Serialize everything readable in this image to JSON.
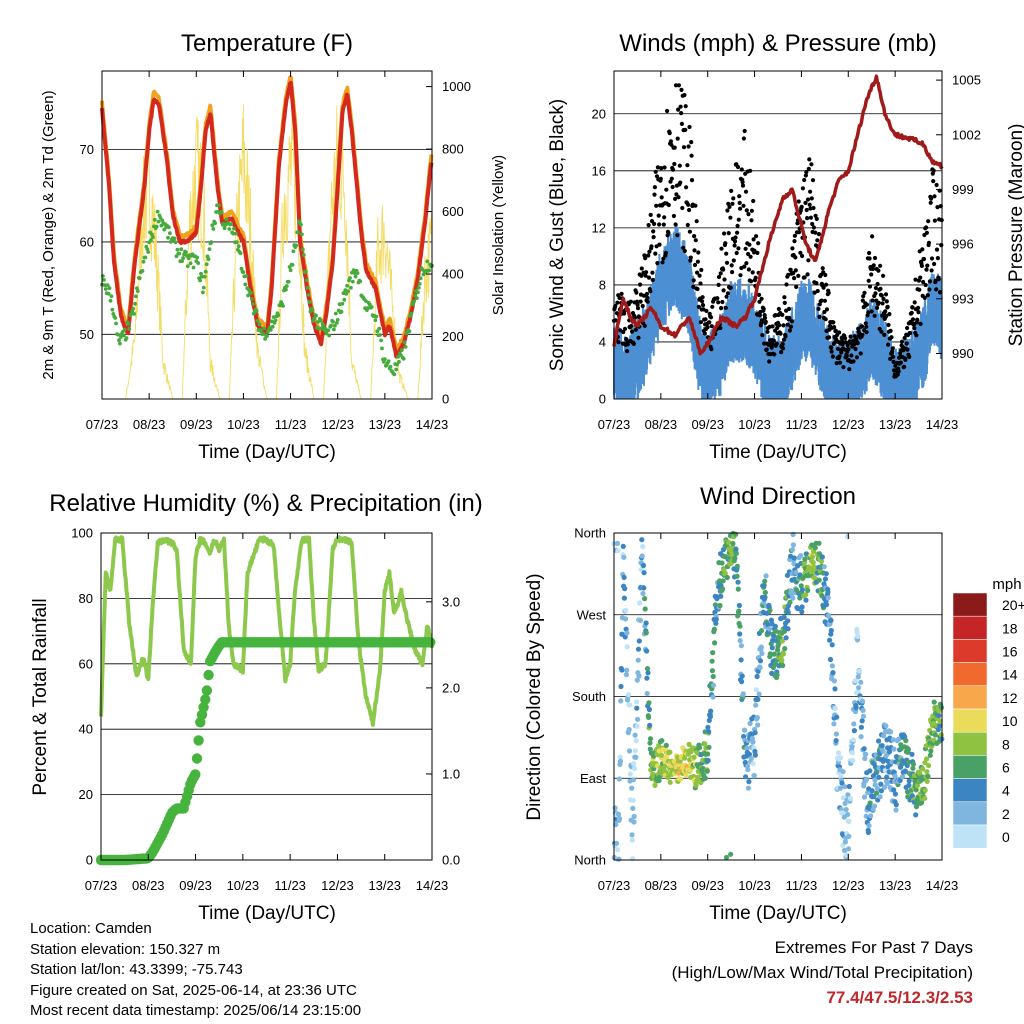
{
  "colors": {
    "temp_red": "#d42a1e",
    "temp_orange": "#f2a11f",
    "dewpoint_green": "#46aa3c",
    "solar_yellow": "#f5dc64",
    "wind_blue": "#4d8fd2",
    "gust_black": "#000000",
    "pressure_maroon": "#a01a1a",
    "rh_lightgreen": "#8cc84b",
    "precip_green": "#46b43c",
    "extremes_red": "#c0272d"
  },
  "time_ticks": [
    "07/23",
    "08/23",
    "09/23",
    "10/23",
    "11/23",
    "12/23",
    "13/23",
    "14/23"
  ],
  "chart_data": [
    {
      "id": "temperature",
      "type": "line",
      "title": "Temperature (F)",
      "xlabel": "Time (Day/UTC)",
      "ylabel": "2m & 9m T (Red, Orange) & 2m Td (Green)",
      "y2label": "Solar Insolation (Yellow)",
      "ylim": [
        43,
        78.5
      ],
      "y2lim": [
        0,
        1050
      ],
      "yticks": [
        50,
        60,
        70
      ],
      "y2ticks": [
        0,
        200,
        400,
        600,
        800,
        1000
      ],
      "x_unit": "days since 07/23 UTC",
      "series": [
        {
          "name": "2m T",
          "axis": "left",
          "x": [
            0,
            0.15,
            0.25,
            0.4,
            0.55,
            0.7,
            0.9,
            1.0,
            1.1,
            1.2,
            1.35,
            1.5,
            1.65,
            1.8,
            2.0,
            2.1,
            2.2,
            2.3,
            2.45,
            2.55,
            2.75,
            2.9,
            3.0,
            3.15,
            3.3,
            3.5,
            3.6,
            3.75,
            3.9,
            4.0,
            4.1,
            4.2,
            4.35,
            4.5,
            4.65,
            4.75,
            4.9,
            5.0,
            5.1,
            5.2,
            5.3,
            5.5,
            5.6,
            5.8,
            6.0,
            6.1,
            6.25,
            6.4,
            6.55,
            6.7,
            6.85,
            6.95,
            7.0
          ],
          "y": [
            74.5,
            66,
            58,
            52,
            50,
            58,
            66,
            72,
            75.5,
            75,
            70,
            63,
            60,
            60,
            61,
            66,
            72,
            74,
            66,
            62,
            62.5,
            61,
            60,
            55,
            51,
            50,
            55,
            68,
            75,
            77.4,
            72,
            60,
            55,
            51,
            49,
            52,
            58,
            66,
            74,
            76,
            72,
            61,
            57,
            55,
            50,
            51,
            47.5,
            49,
            52,
            56,
            62,
            67,
            69
          ]
        },
        {
          "name": "2m Td",
          "axis": "left",
          "x": [
            0,
            0.2,
            0.35,
            0.5,
            0.65,
            0.8,
            1.0,
            1.2,
            1.4,
            1.6,
            1.8,
            2.0,
            2.15,
            2.3,
            2.45,
            2.6,
            2.8,
            3.0,
            3.2,
            3.4,
            3.6,
            3.8,
            4.0,
            4.2,
            4.4,
            4.6,
            4.8,
            5.0,
            5.2,
            5.4,
            5.6,
            5.8,
            6.0,
            6.2,
            6.4,
            6.6,
            6.8,
            7.0
          ],
          "y": [
            56,
            54,
            49,
            50,
            52,
            56,
            60,
            63,
            61,
            59,
            58,
            58,
            55,
            60,
            64,
            62,
            61,
            57,
            53,
            50,
            51,
            53,
            57,
            62,
            53,
            51,
            50,
            52,
            55,
            57,
            53,
            52,
            47,
            46,
            48,
            53,
            57,
            58
          ]
        },
        {
          "name": "Solar Insolation",
          "axis": "right",
          "x": [
            0,
            0.3,
            0.5,
            0.7,
            0.85,
            1.0,
            1.15,
            1.3,
            1.5,
            1.7,
            1.85,
            2.0,
            2.15,
            2.3,
            2.5,
            2.7,
            2.85,
            3.0,
            3.15,
            3.3,
            3.5,
            3.7,
            3.85,
            4.0,
            4.15,
            4.3,
            4.5,
            4.7,
            4.85,
            5.0,
            5.15,
            5.3,
            5.5,
            5.7,
            5.85,
            6.0,
            6.15,
            6.3,
            6.5,
            6.7,
            6.85,
            7.0
          ],
          "y": [
            0,
            0,
            0,
            250,
            750,
            900,
            600,
            150,
            0,
            0,
            700,
            950,
            800,
            150,
            0,
            0,
            650,
            1000,
            700,
            200,
            0,
            0,
            800,
            950,
            850,
            200,
            0,
            0,
            750,
            1000,
            900,
            150,
            0,
            0,
            600,
            700,
            400,
            100,
            0,
            0,
            500,
            650
          ]
        }
      ]
    },
    {
      "id": "winds",
      "type": "scatter",
      "title": "Winds (mph) & Pressure (mb)",
      "xlabel": "Time (Day/UTC)",
      "ylabel": "Sonic Wind & Gust (Blue, Black)",
      "y2label": "Station Pressure (Maroon)",
      "ylim": [
        0,
        23
      ],
      "y2lim": [
        987.5,
        1005.5
      ],
      "yticks": [
        0,
        4,
        8,
        12,
        16,
        20
      ],
      "y2ticks": [
        990,
        993,
        996,
        999,
        1002,
        1005
      ],
      "x_unit": "days since 07/23 UTC",
      "series": [
        {
          "name": "Sonic Wind",
          "axis": "left",
          "x": [
            0,
            0.3,
            0.6,
            0.8,
            1.0,
            1.3,
            1.6,
            1.8,
            2.0,
            2.2,
            2.5,
            2.8,
            3.0,
            3.3,
            3.6,
            3.8,
            4.0,
            4.2,
            4.4,
            4.7,
            5.0,
            5.3,
            5.5,
            5.8,
            6.0,
            6.3,
            6.6,
            6.8,
            7.0
          ],
          "y": [
            3,
            2,
            4,
            6,
            8,
            10,
            8,
            4,
            2,
            3,
            6,
            6,
            5,
            2,
            2,
            4,
            6,
            6,
            4,
            2,
            2,
            3,
            5,
            3,
            1,
            2,
            4,
            7,
            6
          ]
        },
        {
          "name": "Gust",
          "axis": "left",
          "x": [
            0,
            0.3,
            0.6,
            0.8,
            1.0,
            1.3,
            1.6,
            1.8,
            2.0,
            2.2,
            2.5,
            2.8,
            3.0,
            3.3,
            3.6,
            3.8,
            4.0,
            4.2,
            4.4,
            4.7,
            5.0,
            5.3,
            5.5,
            5.8,
            6.0,
            6.3,
            6.6,
            6.8,
            7.0
          ],
          "y": [
            6,
            5,
            7,
            10,
            14,
            18,
            15,
            8,
            4,
            6,
            12,
            14,
            10,
            4,
            5,
            8,
            12,
            13,
            8,
            4,
            3,
            5,
            9,
            6,
            2,
            4,
            9,
            12,
            11
          ]
        },
        {
          "name": "Station Pressure",
          "axis": "right",
          "x": [
            0,
            0.2,
            0.35,
            0.5,
            0.8,
            1.0,
            1.3,
            1.6,
            1.85,
            2.0,
            2.3,
            2.6,
            2.8,
            3.0,
            3.3,
            3.6,
            3.8,
            4.0,
            4.1,
            4.3,
            4.5,
            4.6,
            4.8,
            5.0,
            5.2,
            5.4,
            5.6,
            5.8,
            6.0,
            6.3,
            6.6,
            6.8,
            7.0
          ],
          "y": [
            990.5,
            993,
            992,
            991.5,
            992.5,
            991.5,
            991,
            992,
            990,
            990.5,
            992,
            991.5,
            992,
            993,
            996,
            998.5,
            999,
            997,
            996,
            995,
            997,
            998,
            999.5,
            1000,
            1002,
            1004,
            1005.2,
            1003,
            1002,
            1001.8,
            1001.5,
            1000.5,
            1000.3
          ]
        }
      ]
    },
    {
      "id": "humidity",
      "type": "line",
      "title": "Relative Humidity (%) & Precipitation (in)",
      "xlabel": "Time (Day/UTC)",
      "ylabel": "Percent & Total Rainfall",
      "ylim": [
        0,
        100
      ],
      "y2lim": [
        0,
        3.8
      ],
      "yticks": [
        0,
        20,
        40,
        60,
        80,
        100
      ],
      "y2ticks": [
        "0.0",
        "1.0",
        "2.0",
        "3.0"
      ],
      "x_unit": "days since 07/23 UTC",
      "series": [
        {
          "name": "Relative Humidity",
          "axis": "left",
          "x": [
            0,
            0.1,
            0.2,
            0.3,
            0.45,
            0.6,
            0.75,
            0.9,
            1.0,
            1.1,
            1.2,
            1.35,
            1.5,
            1.6,
            1.75,
            1.9,
            2.0,
            2.1,
            2.2,
            2.3,
            2.4,
            2.5,
            2.6,
            2.7,
            2.8,
            3.0,
            3.1,
            3.2,
            3.35,
            3.5,
            3.65,
            3.8,
            3.9,
            4.0,
            4.1,
            4.25,
            4.4,
            4.5,
            4.6,
            4.75,
            4.9,
            5.0,
            5.15,
            5.3,
            5.45,
            5.6,
            5.75,
            5.9,
            6.0,
            6.1,
            6.2,
            6.35,
            6.5,
            6.65,
            6.8,
            6.9,
            7.0
          ],
          "y": [
            44,
            88,
            82,
            98,
            98,
            72,
            56,
            62,
            55,
            80,
            97,
            98,
            97,
            95,
            64,
            60,
            93,
            98,
            97,
            94,
            98,
            95,
            98,
            72,
            60,
            58,
            88,
            92,
            98,
            98,
            96,
            70,
            55,
            60,
            82,
            98,
            98,
            74,
            58,
            60,
            95,
            98,
            98,
            97,
            66,
            50,
            42,
            58,
            82,
            88,
            75,
            82,
            72,
            64,
            60,
            72,
            65
          ]
        },
        {
          "name": "Total Precipitation",
          "axis": "right",
          "x": [
            0,
            0.5,
            1.0,
            1.1,
            1.3,
            1.5,
            1.6,
            1.75,
            1.9,
            2.0,
            2.1,
            2.2,
            2.25,
            2.3,
            2.45,
            2.55,
            3.0,
            4.0,
            5.0,
            6.0,
            7.0
          ],
          "y": [
            0,
            0,
            0.02,
            0.1,
            0.3,
            0.55,
            0.6,
            0.6,
            0.9,
            1.0,
            1.6,
            1.85,
            2.0,
            2.3,
            2.45,
            2.53,
            2.53,
            2.53,
            2.53,
            2.53,
            2.53
          ]
        }
      ]
    },
    {
      "id": "wind_direction",
      "type": "scatter",
      "title": "Wind Direction",
      "xlabel": "Time (Day/UTC)",
      "ylabel": "Direction (Colored By Speed)",
      "yticks": [
        "North",
        "East",
        "South",
        "West",
        "North"
      ],
      "ylim": [
        0,
        360
      ],
      "x_unit": "days since 07/23 UTC",
      "legend": {
        "title": "mph",
        "placement": "right",
        "labels": [
          "20+",
          "18",
          "16",
          "14",
          "12",
          "10",
          "8",
          "6",
          "4",
          "2",
          "0"
        ],
        "colors": [
          "#8b1a1a",
          "#c52527",
          "#dc3a2a",
          "#ef6a2c",
          "#f8a84a",
          "#eadc5a",
          "#8fc241",
          "#4aa166",
          "#3b85c2",
          "#7fb6e0",
          "#bfe3f6"
        ]
      },
      "series": [
        {
          "name": "Wind Direction",
          "x": [
            0.1,
            0.2,
            0.4,
            0.6,
            0.8,
            1.0,
            1.2,
            1.4,
            1.6,
            1.8,
            2.0,
            2.2,
            2.4,
            2.6,
            2.8,
            3.0,
            3.2,
            3.4,
            3.6,
            3.8,
            4.0,
            4.2,
            4.4,
            4.6,
            4.8,
            5.0,
            5.2,
            5.4,
            5.6,
            5.8,
            6.0,
            6.2,
            6.4,
            6.6,
            6.8,
            7.0
          ],
          "y": [
            20,
            330,
            30,
            340,
            100,
            110,
            100,
            105,
            110,
            100,
            120,
            290,
            340,
            340,
            110,
            130,
            300,
            220,
            240,
            320,
            300,
            330,
            320,
            270,
            80,
            30,
            230,
            60,
            90,
            120,
            90,
            110,
            80,
            80,
            150,
            160
          ],
          "speed": [
            2,
            3,
            1,
            2,
            7,
            8,
            9,
            10,
            9,
            7,
            6,
            4,
            7,
            6,
            3,
            2,
            4,
            5,
            7,
            3,
            5,
            8,
            6,
            3,
            2,
            1,
            2,
            3,
            4,
            2,
            3,
            5,
            6,
            7,
            7,
            6
          ]
        }
      ]
    }
  ],
  "info": {
    "location": "Location: Camden",
    "elevation": "Station elevation: 150.327 m",
    "latlon": "Station lat/lon: 43.3399; -75.743",
    "created": "Figure created on Sat, 2025-06-14, at 23:36 UTC",
    "recent": "Most recent data timestamp: 2025/06/14 23:15:00"
  },
  "extremes": {
    "title": "Extremes For Past 7 Days",
    "subtitle": "(High/Low/Max Wind/Total Precipitation)",
    "values": "77.4/47.5/12.3/2.53"
  }
}
